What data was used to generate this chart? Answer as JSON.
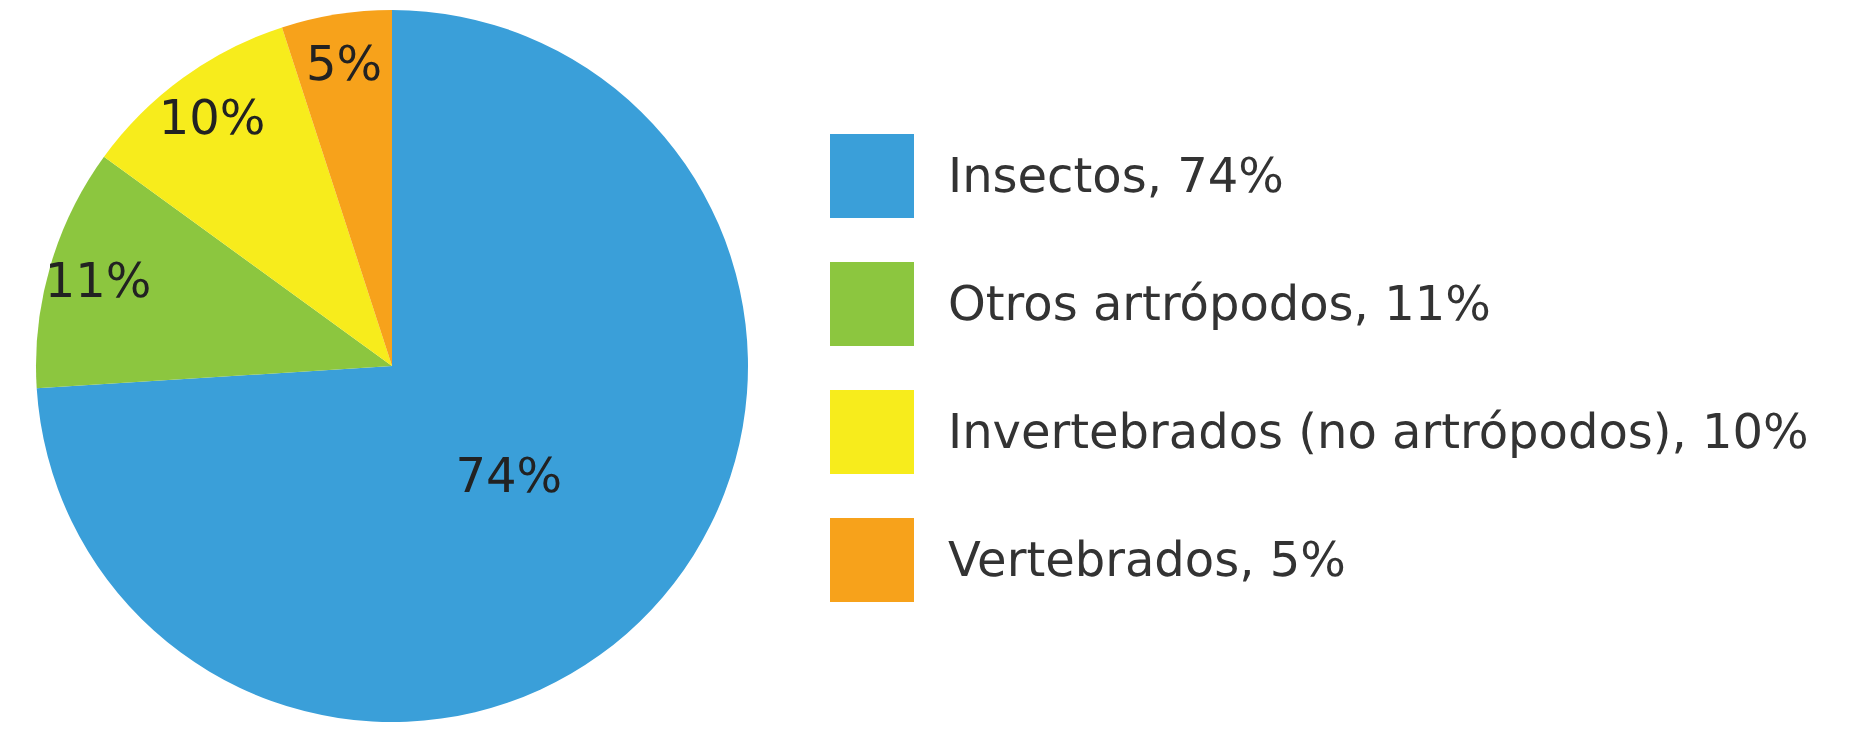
{
  "chart_data": {
    "type": "pie",
    "categories": [
      "Insectos, 74%",
      "Otros artrópodos, 11%",
      "Invertebrados (no artrópodos), 10%",
      "Vertebrados, 5%"
    ],
    "values": [
      74,
      11,
      10,
      5
    ],
    "colors": [
      "#3a9fd9",
      "#8cc63f",
      "#f7ec1c",
      "#f7a21b"
    ],
    "value_labels": [
      "74%",
      "11%",
      "10%",
      "5%"
    ],
    "legend": "right"
  }
}
